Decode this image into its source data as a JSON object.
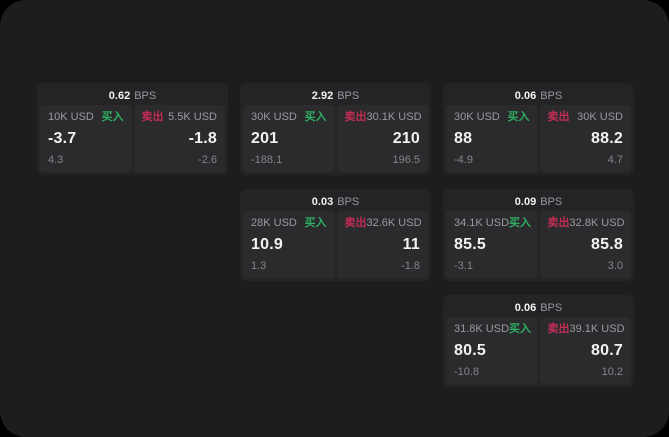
{
  "labels": {
    "bps": "BPS",
    "buy": "买入",
    "sell": "卖出"
  },
  "colors": {
    "outer_background": "#000000",
    "surface_background": "#1d1d1f",
    "card_background": "#242426",
    "panel_background": "#2b2b2d",
    "text_primary": "#f2f2f4",
    "text_secondary": "#9a9aa0",
    "buy_green": "#2fae63",
    "sell_red": "#c22c55"
  },
  "cards": [
    {
      "bps": "0.62",
      "buy": {
        "amount": "10K USD",
        "value": "-3.7",
        "sub": "4.3"
      },
      "sell": {
        "amount": "5.5K USD",
        "value": "-1.8",
        "sub": "-2.6"
      }
    },
    {
      "bps": "2.92",
      "buy": {
        "amount": "30K USD",
        "value": "201",
        "sub": "-188.1"
      },
      "sell": {
        "amount": "30.1K USD",
        "value": "210",
        "sub": "196.5"
      }
    },
    {
      "bps": "0.06",
      "buy": {
        "amount": "30K USD",
        "value": "88",
        "sub": "-4.9"
      },
      "sell": {
        "amount": "30K USD",
        "value": "88.2",
        "sub": "4.7"
      }
    },
    {
      "bps": "0.03",
      "buy": {
        "amount": "28K USD",
        "value": "10.9",
        "sub": "1.3"
      },
      "sell": {
        "amount": "32.6K USD",
        "value": "11",
        "sub": "-1.8"
      }
    },
    {
      "bps": "0.09",
      "buy": {
        "amount": "34.1K USD",
        "value": "85.5",
        "sub": "-3.1"
      },
      "sell": {
        "amount": "32.8K USD",
        "value": "85.8",
        "sub": "3.0"
      }
    },
    {
      "bps": "0.06",
      "buy": {
        "amount": "31.8K USD",
        "value": "80.5",
        "sub": "-10.8"
      },
      "sell": {
        "amount": "39.1K USD",
        "value": "80.7",
        "sub": "10.2"
      }
    }
  ]
}
